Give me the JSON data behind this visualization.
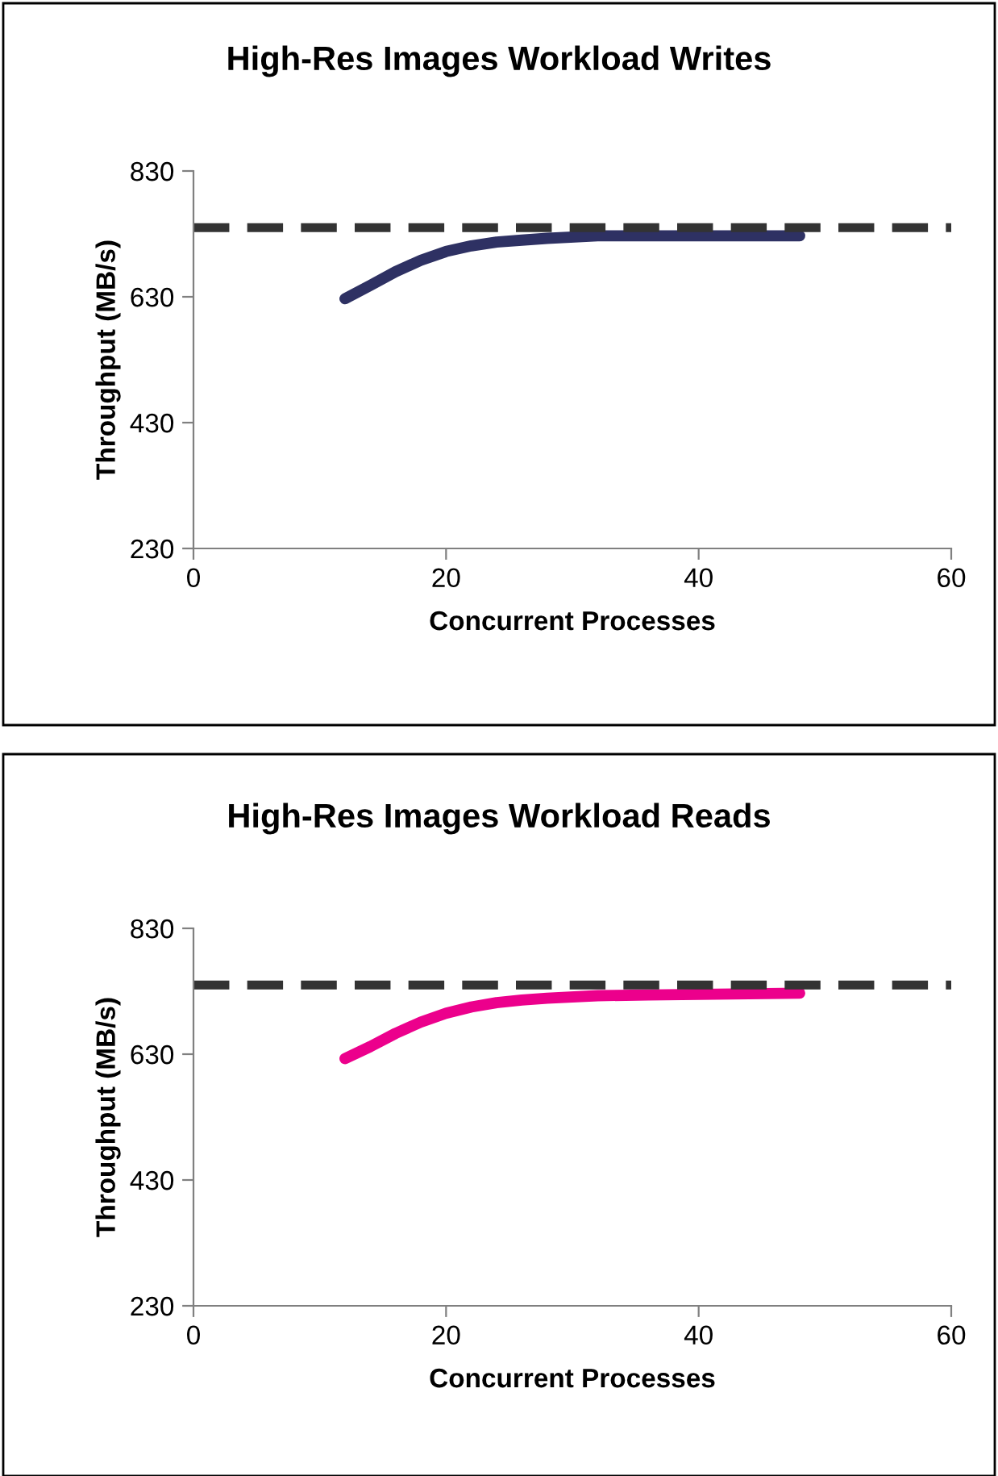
{
  "chart_data": [
    {
      "type": "line",
      "title": "High-Res Images Workload Writes",
      "xlabel": "Concurrent Processes",
      "ylabel": "Throughput (MB/s)",
      "xlim": [
        0,
        60
      ],
      "xticks": [
        0,
        20,
        40,
        60
      ],
      "ylim": [
        230,
        830
      ],
      "yticks": [
        230,
        430,
        630,
        830
      ],
      "grid": false,
      "legend": false,
      "series": [
        {
          "color": "#2e3163",
          "x": [
            12,
            14,
            16,
            18,
            20,
            22,
            24,
            26,
            28,
            32,
            36,
            40,
            44,
            48
          ],
          "values": [
            627,
            648,
            670,
            688,
            702,
            711,
            717,
            720,
            723,
            727,
            727,
            727,
            727,
            727
          ]
        }
      ],
      "ref_lines": [
        {
          "axis": "y",
          "value": 740,
          "color": "#333333",
          "line_style": "dashed"
        }
      ]
    },
    {
      "type": "line",
      "title": "High-Res Images Workload Reads",
      "xlabel": "Concurrent Processes",
      "ylabel": "Throughput (MB/s)",
      "xlim": [
        0,
        60
      ],
      "xticks": [
        0,
        20,
        40,
        60
      ],
      "ylim": [
        230,
        830
      ],
      "yticks": [
        230,
        430,
        630,
        830
      ],
      "grid": false,
      "legend": false,
      "series": [
        {
          "color": "#ec008c",
          "x": [
            12,
            14,
            16,
            18,
            20,
            22,
            24,
            26,
            28,
            32,
            36,
            40,
            44,
            48
          ],
          "values": [
            623,
            642,
            663,
            681,
            695,
            705,
            712,
            716,
            719,
            723,
            724,
            725,
            726,
            727
          ]
        }
      ],
      "ref_lines": [
        {
          "axis": "y",
          "value": 740,
          "color": "#333333",
          "line_style": "dashed"
        }
      ]
    }
  ]
}
